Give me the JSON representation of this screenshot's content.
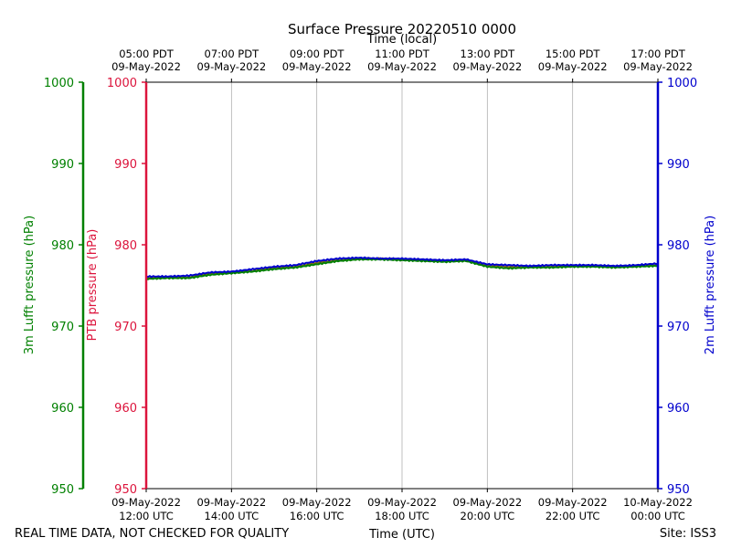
{
  "chart_data": {
    "type": "line",
    "title": "Surface Pressure 20220510 0000",
    "top_axis_label": "Time (local)",
    "bottom_axis_label": "Time (UTC)",
    "top_ticks": [
      {
        "time": "05:00 PDT",
        "date": "09-May-2022"
      },
      {
        "time": "07:00 PDT",
        "date": "09-May-2022"
      },
      {
        "time": "09:00 PDT",
        "date": "09-May-2022"
      },
      {
        "time": "11:00 PDT",
        "date": "09-May-2022"
      },
      {
        "time": "13:00 PDT",
        "date": "09-May-2022"
      },
      {
        "time": "15:00 PDT",
        "date": "09-May-2022"
      },
      {
        "time": "17:00 PDT",
        "date": "09-May-2022"
      }
    ],
    "bottom_ticks": [
      {
        "date": "09-May-2022",
        "time": "12:00 UTC"
      },
      {
        "date": "09-May-2022",
        "time": "14:00 UTC"
      },
      {
        "date": "09-May-2022",
        "time": "16:00 UTC"
      },
      {
        "date": "09-May-2022",
        "time": "18:00 UTC"
      },
      {
        "date": "09-May-2022",
        "time": "20:00 UTC"
      },
      {
        "date": "09-May-2022",
        "time": "22:00 UTC"
      },
      {
        "date": "10-May-2022",
        "time": "00:00 UTC"
      }
    ],
    "x_utc_hours": [
      12,
      12.5,
      13,
      13.5,
      14,
      14.5,
      15,
      15.5,
      16,
      16.5,
      17,
      17.5,
      18,
      18.5,
      19,
      19.5,
      20,
      20.5,
      21,
      21.5,
      22,
      22.5,
      23,
      23.5,
      24
    ],
    "ylim": [
      950,
      1000
    ],
    "yticks": [
      950,
      960,
      970,
      980,
      990,
      1000
    ],
    "grid": "vertical",
    "axes": {
      "lufft3m": {
        "label": "3m Lufft pressure (hPa)",
        "color": "#008000"
      },
      "ptb": {
        "label": "PTB pressure (hPa)",
        "color": "#dc143c"
      },
      "lufft2m": {
        "label": "2m Lufft pressure (hPa)",
        "color": "#0000cd"
      }
    },
    "series": [
      {
        "axis": "ptb",
        "color": "#8b6914",
        "values": [
          975.9,
          976.0,
          976.0,
          976.5,
          976.6,
          976.8,
          977.2,
          977.3,
          977.8,
          978.1,
          978.3,
          978.3,
          978.2,
          978.1,
          978.0,
          978.1,
          977.5,
          977.3,
          977.3,
          977.3,
          977.4,
          977.4,
          977.3,
          977.4,
          977.5
        ]
      },
      {
        "axis": "lufft3m",
        "color": "#008000",
        "values": [
          975.8,
          975.9,
          975.9,
          976.3,
          976.5,
          976.7,
          977.0,
          977.2,
          977.6,
          978.0,
          978.2,
          978.2,
          978.1,
          978.0,
          977.9,
          978.0,
          977.3,
          977.1,
          977.2,
          977.2,
          977.3,
          977.3,
          977.2,
          977.3,
          977.4
        ]
      },
      {
        "axis": "lufft2m",
        "color": "#0000cd",
        "values": [
          976.1,
          976.1,
          976.2,
          976.6,
          976.7,
          977.0,
          977.3,
          977.5,
          978.0,
          978.3,
          978.4,
          978.3,
          978.3,
          978.2,
          978.1,
          978.2,
          977.6,
          977.5,
          977.4,
          977.5,
          977.5,
          977.5,
          977.4,
          977.5,
          977.7
        ]
      }
    ]
  },
  "footer": {
    "quality_note": "REAL TIME DATA, NOT CHECKED FOR QUALITY",
    "site": "Site: ISS3"
  }
}
